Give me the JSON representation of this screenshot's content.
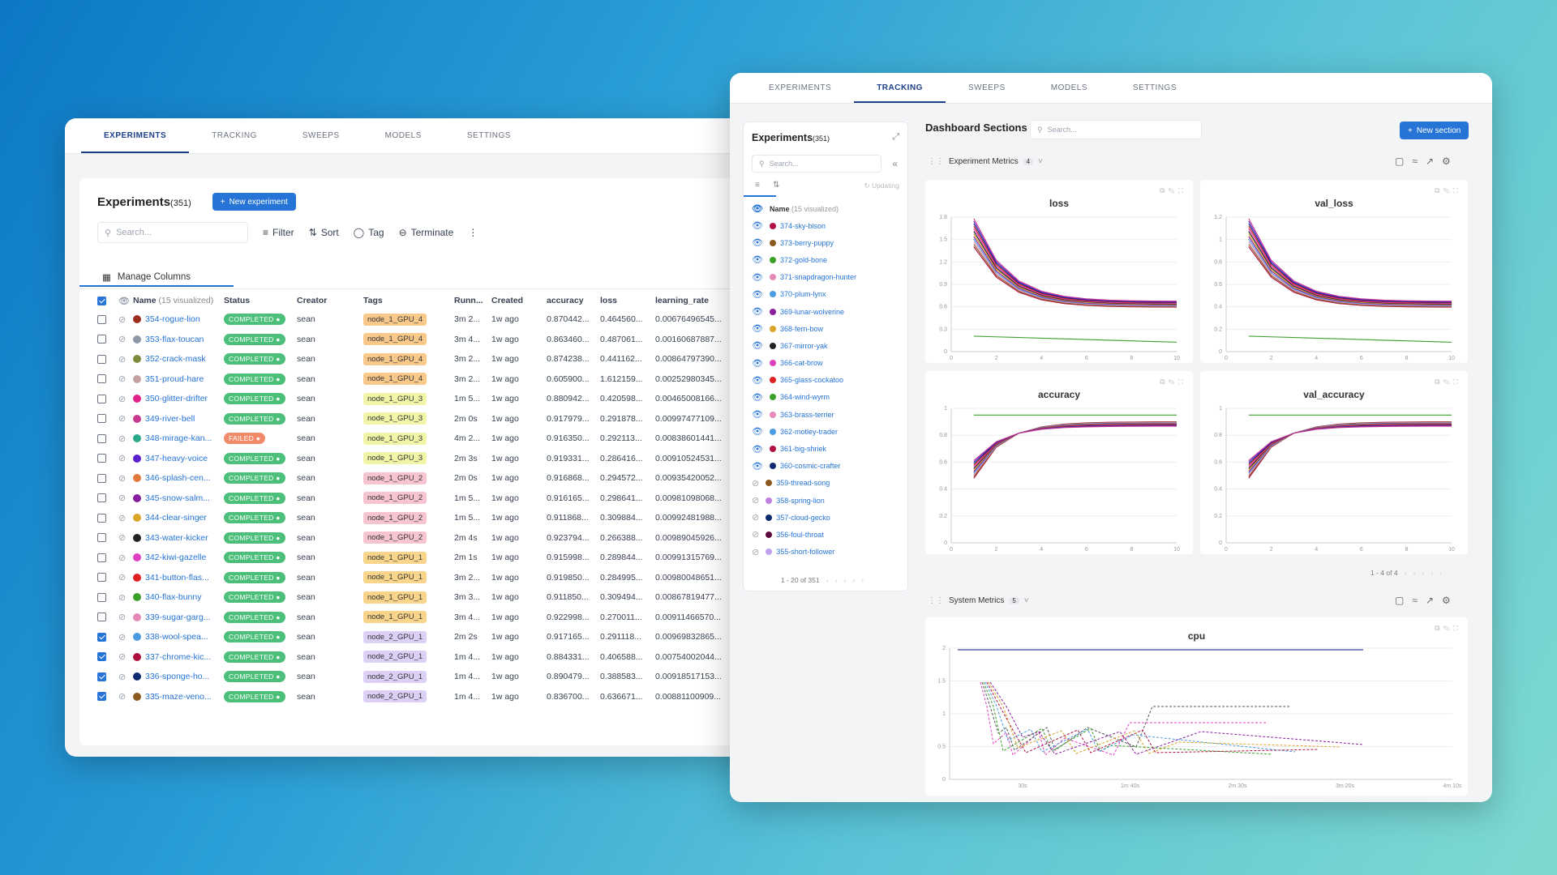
{
  "left_window": {
    "tabs": [
      "EXPERIMENTS",
      "TRACKING",
      "SWEEPS",
      "MODELS",
      "SETTINGS"
    ],
    "active_tab": 0,
    "title": "Experiments",
    "count": "(351)",
    "new_button": "New experiment",
    "search_placeholder": "Search...",
    "toolbar": {
      "filter": "Filter",
      "sort": "Sort",
      "tag": "Tag",
      "terminate": "Terminate"
    },
    "manage_columns": "Manage Columns",
    "columns": {
      "name": "Name",
      "visualized": "(15 visualized)",
      "status": "Status",
      "creator": "Creator",
      "tags": "Tags",
      "running": "Runn...",
      "created": "Created",
      "accuracy": "accuracy",
      "loss": "loss",
      "learning_rate": "learning_rate"
    },
    "rows": [
      {
        "checked": false,
        "color": "#9b2d20",
        "name": "354-rogue-lion",
        "status": "COMPLETED",
        "creator": "sean",
        "tag": "node_1_GPU_4",
        "tagcolor": "#f8c98a",
        "run": "3m 2...",
        "created": "1w ago",
        "acc": "0.870442...",
        "loss": "0.464560...",
        "lr": "0.00676496545..."
      },
      {
        "checked": false,
        "color": "#8c99a6",
        "name": "353-flax-toucan",
        "status": "COMPLETED",
        "creator": "sean",
        "tag": "node_1_GPU_4",
        "tagcolor": "#f8c98a",
        "run": "3m 4...",
        "created": "1w ago",
        "acc": "0.863460...",
        "loss": "0.487061...",
        "lr": "0.00160687887..."
      },
      {
        "checked": false,
        "color": "#7c8c3a",
        "name": "352-crack-mask",
        "status": "COMPLETED",
        "creator": "sean",
        "tag": "node_1_GPU_4",
        "tagcolor": "#f8c98a",
        "run": "3m 2...",
        "created": "1w ago",
        "acc": "0.874238...",
        "loss": "0.441162...",
        "lr": "0.00864797390..."
      },
      {
        "checked": false,
        "color": "#c4a0a0",
        "name": "351-proud-hare",
        "status": "COMPLETED",
        "creator": "sean",
        "tag": "node_1_GPU_4",
        "tagcolor": "#f8c98a",
        "run": "3m 2...",
        "created": "1w ago",
        "acc": "0.605900...",
        "loss": "1.612159...",
        "lr": "0.00252980345..."
      },
      {
        "checked": false,
        "color": "#e0218a",
        "name": "350-glitter-drifter",
        "status": "COMPLETED",
        "creator": "sean",
        "tag": "node_1_GPU_3",
        "tagcolor": "#f0f5a8",
        "run": "1m 5...",
        "created": "1w ago",
        "acc": "0.880942...",
        "loss": "0.420598...",
        "lr": "0.00465008166..."
      },
      {
        "checked": false,
        "color": "#c6398f",
        "name": "349-river-bell",
        "status": "COMPLETED",
        "creator": "sean",
        "tag": "node_1_GPU_3",
        "tagcolor": "#f0f5a8",
        "run": "2m 0s",
        "created": "1w ago",
        "acc": "0.917979...",
        "loss": "0.291878...",
        "lr": "0.00997477109..."
      },
      {
        "checked": false,
        "color": "#2aa889",
        "name": "348-mirage-kan...",
        "status": "FAILED",
        "creator": "sean",
        "tag": "node_1_GPU_3",
        "tagcolor": "#f0f5a8",
        "run": "4m 2...",
        "created": "1w ago",
        "acc": "0.916350...",
        "loss": "0.292113...",
        "lr": "0.00838601441..."
      },
      {
        "checked": false,
        "color": "#5b1fd0",
        "name": "347-heavy-voice",
        "status": "COMPLETED",
        "creator": "sean",
        "tag": "node_1_GPU_3",
        "tagcolor": "#f0f5a8",
        "run": "2m 3s",
        "created": "1w ago",
        "acc": "0.919331...",
        "loss": "0.286416...",
        "lr": "0.00910524531..."
      },
      {
        "checked": false,
        "color": "#e07a3a",
        "name": "346-splash-cen...",
        "status": "COMPLETED",
        "creator": "sean",
        "tag": "node_1_GPU_2",
        "tagcolor": "#f7c4d2",
        "run": "2m 0s",
        "created": "1w ago",
        "acc": "0.916868...",
        "loss": "0.294572...",
        "lr": "0.00935420052..."
      },
      {
        "checked": false,
        "color": "#8a1f9e",
        "name": "345-snow-salm...",
        "status": "COMPLETED",
        "creator": "sean",
        "tag": "node_1_GPU_2",
        "tagcolor": "#f7c4d2",
        "run": "1m 5...",
        "created": "1w ago",
        "acc": "0.916165...",
        "loss": "0.298641...",
        "lr": "0.00981098068..."
      },
      {
        "checked": false,
        "color": "#d9a528",
        "name": "344-clear-singer",
        "status": "COMPLETED",
        "creator": "sean",
        "tag": "node_1_GPU_2",
        "tagcolor": "#f7c4d2",
        "run": "1m 5...",
        "created": "1w ago",
        "acc": "0.911868...",
        "loss": "0.309884...",
        "lr": "0.00992481988..."
      },
      {
        "checked": false,
        "color": "#222222",
        "name": "343-water-kicker",
        "status": "COMPLETED",
        "creator": "sean",
        "tag": "node_1_GPU_2",
        "tagcolor": "#f7c4d2",
        "run": "2m 4s",
        "created": "1w ago",
        "acc": "0.923794...",
        "loss": "0.266388...",
        "lr": "0.00989045926..."
      },
      {
        "checked": false,
        "color": "#e040c0",
        "name": "342-kiwi-gazelle",
        "status": "COMPLETED",
        "creator": "sean",
        "tag": "node_1_GPU_1",
        "tagcolor": "#f8d58a",
        "run": "2m 1s",
        "created": "1w ago",
        "acc": "0.915998...",
        "loss": "0.289844...",
        "lr": "0.00991315769..."
      },
      {
        "checked": false,
        "color": "#e02020",
        "name": "341-button-flas...",
        "status": "COMPLETED",
        "creator": "sean",
        "tag": "node_1_GPU_1",
        "tagcolor": "#f8d58a",
        "run": "3m 2...",
        "created": "1w ago",
        "acc": "0.919850...",
        "loss": "0.284995...",
        "lr": "0.00980048651..."
      },
      {
        "checked": false,
        "color": "#3aa02a",
        "name": "340-flax-bunny",
        "status": "COMPLETED",
        "creator": "sean",
        "tag": "node_1_GPU_1",
        "tagcolor": "#f8d58a",
        "run": "3m 3...",
        "created": "1w ago",
        "acc": "0.911850...",
        "loss": "0.309494...",
        "lr": "0.00867819477..."
      },
      {
        "checked": false,
        "color": "#e58ab8",
        "name": "339-sugar-garg...",
        "status": "COMPLETED",
        "creator": "sean",
        "tag": "node_1_GPU_1",
        "tagcolor": "#f8d58a",
        "run": "3m 4...",
        "created": "1w ago",
        "acc": "0.922998...",
        "loss": "0.270011...",
        "lr": "0.00911466570..."
      },
      {
        "checked": true,
        "color": "#4a9be0",
        "name": "338-wool-spea...",
        "status": "COMPLETED",
        "creator": "sean",
        "tag": "node_2_GPU_1",
        "tagcolor": "#ddd0f7",
        "run": "2m 2s",
        "created": "1w ago",
        "acc": "0.917165...",
        "loss": "0.291118...",
        "lr": "0.00969832865..."
      },
      {
        "checked": true,
        "color": "#b01040",
        "name": "337-chrome-kic...",
        "status": "COMPLETED",
        "creator": "sean",
        "tag": "node_2_GPU_1",
        "tagcolor": "#ddd0f7",
        "run": "1m 4...",
        "created": "1w ago",
        "acc": "0.884331...",
        "loss": "0.406588...",
        "lr": "0.00754002044..."
      },
      {
        "checked": true,
        "color": "#102a70",
        "name": "336-sponge-ho...",
        "status": "COMPLETED",
        "creator": "sean",
        "tag": "node_2_GPU_1",
        "tagcolor": "#ddd0f7",
        "run": "1m 4...",
        "created": "1w ago",
        "acc": "0.890479...",
        "loss": "0.388583...",
        "lr": "0.00918517153..."
      },
      {
        "checked": true,
        "color": "#8a5a20",
        "name": "335-maze-veno...",
        "status": "COMPLETED",
        "creator": "sean",
        "tag": "node_2_GPU_1",
        "tagcolor": "#ddd0f7",
        "run": "1m 4...",
        "created": "1w ago",
        "acc": "0.836700...",
        "loss": "0.636671...",
        "lr": "0.00881100909..."
      }
    ]
  },
  "right_window": {
    "tabs": [
      "EXPERIMENTS",
      "TRACKING",
      "SWEEPS",
      "MODELS",
      "SETTINGS"
    ],
    "active_tab": 1,
    "side_title": "Experiments",
    "side_count": "(351)",
    "side_search": "Search...",
    "updating": "Updating",
    "list_header": "Name",
    "list_header_sub": "(15 visualized)",
    "list": [
      {
        "name": "374-sky-bison",
        "color": "#b01040",
        "vis": true
      },
      {
        "name": "373-berry-puppy",
        "color": "#8a5a20",
        "vis": true
      },
      {
        "name": "372-gold-bone",
        "color": "#3aa02a",
        "vis": true
      },
      {
        "name": "371-snapdragon-hunter",
        "color": "#e58ab8",
        "vis": true
      },
      {
        "name": "370-plum-lynx",
        "color": "#4a9be0",
        "vis": true
      },
      {
        "name": "369-lunar-wolverine",
        "color": "#8a1f9e",
        "vis": true
      },
      {
        "name": "368-fern-bow",
        "color": "#d9a528",
        "vis": true
      },
      {
        "name": "367-mirror-yak",
        "color": "#222222",
        "vis": true
      },
      {
        "name": "366-cat-brow",
        "color": "#e040c0",
        "vis": true
      },
      {
        "name": "365-glass-cockatoo",
        "color": "#e02020",
        "vis": true
      },
      {
        "name": "364-wind-wyrm",
        "color": "#3aa02a",
        "vis": true
      },
      {
        "name": "363-brass-terrier",
        "color": "#e58ab8",
        "vis": true
      },
      {
        "name": "362-motley-trader",
        "color": "#4a9be0",
        "vis": true
      },
      {
        "name": "361-big-shriek",
        "color": "#b01040",
        "vis": true
      },
      {
        "name": "360-cosmic-crafter",
        "color": "#102a70",
        "vis": true
      },
      {
        "name": "359-thread-song",
        "color": "#8a5a20",
        "vis": false
      },
      {
        "name": "358-spring-lion",
        "color": "#c080e0",
        "vis": false
      },
      {
        "name": "357-cloud-gecko",
        "color": "#102a70",
        "vis": false
      },
      {
        "name": "356-foul-throat",
        "color": "#5b0a3a",
        "vis": false
      },
      {
        "name": "355-short-follower",
        "color": "#c0a0f0",
        "vis": false
      }
    ],
    "pager": "1 - 20 of 351",
    "dashboard_title": "Dashboard Sections",
    "dashboard_search": "Search...",
    "new_section": "New section",
    "section1": {
      "title": "Experiment Metrics",
      "count": "4"
    },
    "section2": {
      "title": "System Metrics",
      "count": "5"
    },
    "panel_pager": "1 - 4 of 4",
    "panels": {
      "loss": {
        "title": "loss",
        "yticks": [
          "1.8",
          "1.5",
          "1.2",
          "0.9",
          "0.6",
          "0.3",
          "0"
        ],
        "xticks": [
          "0",
          "2",
          "4",
          "6",
          "8",
          "10"
        ]
      },
      "val_loss": {
        "title": "val_loss",
        "yticks": [
          "1.2",
          "1",
          "0.8",
          "0.6",
          "0.4",
          "0.2",
          "0"
        ],
        "xticks": [
          "0",
          "2",
          "4",
          "6",
          "8",
          "10"
        ]
      },
      "accuracy": {
        "title": "accuracy",
        "yticks": [
          "1",
          "0.8",
          "0.6",
          "0.4",
          "0.2",
          "0"
        ],
        "xticks": [
          "0",
          "2",
          "4",
          "6",
          "8",
          "10"
        ]
      },
      "val_accuracy": {
        "title": "val_accuracy",
        "yticks": [
          "1",
          "0.8",
          "0.6",
          "0.4",
          "0.2",
          "0"
        ],
        "xticks": [
          "0",
          "2",
          "4",
          "6",
          "8",
          "10"
        ]
      },
      "cpu": {
        "title": "cpu",
        "yticks": [
          "2",
          "1.5",
          "1",
          "0.5",
          "0"
        ],
        "xticks": [
          "30s",
          "1m 40s",
          "2m 30s",
          "3m 20s",
          "4m 10s"
        ]
      }
    },
    "colors": {
      "accent": "#2574d6",
      "completed": "#4cbf7a",
      "failed": "#f08a6a"
    }
  }
}
